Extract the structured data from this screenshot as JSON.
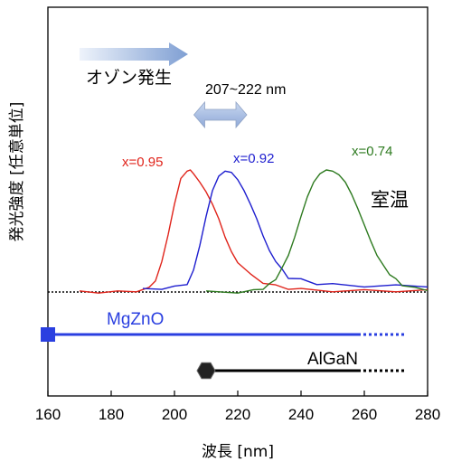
{
  "chart_data": {
    "type": "line",
    "xlabel": "波長 [nm]",
    "ylabel": "発光強度 [任意単位]",
    "xlim": [
      160,
      280
    ],
    "xticks": [
      160,
      180,
      200,
      220,
      240,
      260,
      280
    ],
    "grid": false,
    "series": [
      {
        "name": "x=0.95",
        "color": "#e0241b",
        "x": [
          170,
          176,
          182,
          188,
          192,
          194,
          196,
          198,
          200,
          202,
          204,
          205,
          206,
          208,
          210,
          212,
          214,
          216,
          218,
          220,
          224,
          228,
          232,
          236,
          240,
          250,
          260,
          270,
          280
        ],
        "y": [
          0,
          0,
          0,
          0.01,
          0.03,
          0.1,
          0.25,
          0.47,
          0.72,
          0.93,
          0.99,
          1.0,
          0.97,
          0.9,
          0.82,
          0.72,
          0.6,
          0.45,
          0.33,
          0.24,
          0.14,
          0.08,
          0.05,
          0.03,
          0.02,
          0.01,
          0.01,
          0.01,
          0.01
        ]
      },
      {
        "name": "x=0.92",
        "color": "#1e1ecf",
        "x": [
          190,
          196,
          200,
          204,
          206,
          208,
          210,
          212,
          214,
          216,
          218,
          220,
          222,
          224,
          226,
          228,
          230,
          232,
          234,
          236,
          240,
          245,
          250,
          260,
          270,
          280
        ],
        "y": [
          0.02,
          0.03,
          0.04,
          0.07,
          0.17,
          0.38,
          0.62,
          0.83,
          0.95,
          0.99,
          0.98,
          0.92,
          0.83,
          0.72,
          0.6,
          0.46,
          0.34,
          0.25,
          0.18,
          0.12,
          0.1,
          0.07,
          0.06,
          0.05,
          0.05,
          0.05
        ]
      },
      {
        "name": "x=0.74",
        "color": "#2d7a1f",
        "x": [
          210,
          220,
          225,
          228,
          230,
          232,
          234,
          236,
          238,
          240,
          242,
          244,
          246,
          248,
          250,
          252,
          254,
          256,
          258,
          260,
          262,
          264,
          266,
          268,
          270,
          272,
          276,
          280
        ],
        "y": [
          0,
          0,
          0.01,
          0.03,
          0.06,
          0.11,
          0.19,
          0.3,
          0.45,
          0.62,
          0.78,
          0.9,
          0.97,
          1.0,
          0.99,
          0.96,
          0.9,
          0.8,
          0.68,
          0.55,
          0.42,
          0.3,
          0.22,
          0.15,
          0.1,
          0.06,
          0.03,
          0.02
        ]
      }
    ],
    "annotations": {
      "ozone": "オゾン発生",
      "range": "207~222 nm",
      "room_temp": "室温",
      "mgzno": "MgZnO",
      "algan": "AlGaN"
    },
    "material_ranges": [
      {
        "name": "MgZnO",
        "solid": [
          160,
          258
        ],
        "dotted": [
          258,
          273
        ],
        "color": "#2a3fe0"
      },
      {
        "name": "AlGaN",
        "solid": [
          210,
          258
        ],
        "dotted": [
          258,
          273
        ],
        "color": "#000000"
      }
    ],
    "ozone_arrow": [
      170,
      202
    ],
    "range_arrow": [
      207,
      222
    ]
  }
}
